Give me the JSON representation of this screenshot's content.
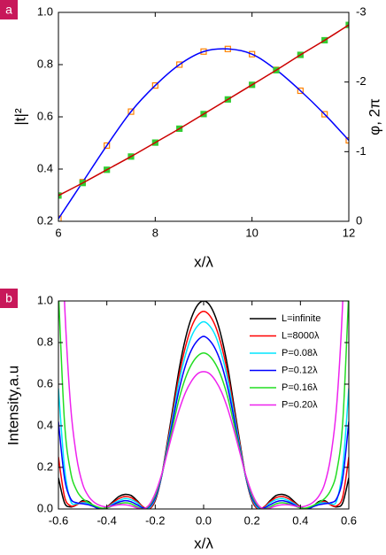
{
  "chart_data": [
    {
      "type": "line",
      "panel_label": "a",
      "xlabel": "x/λ",
      "ylabel": "|t|²",
      "y2label": "φ, 2π",
      "x": [
        6,
        6.5,
        7,
        7.5,
        8,
        8.5,
        9,
        9.5,
        10,
        10.5,
        11,
        11.5,
        12
      ],
      "xlim": [
        6,
        12
      ],
      "xticks": [
        6,
        8,
        10,
        12
      ],
      "ylim": [
        0.2,
        1
      ],
      "yticks": [
        0.2,
        0.4,
        0.6,
        0.8,
        {
          "value": 1,
          "label": "1.0"
        }
      ],
      "y2lim": [
        0,
        -3
      ],
      "y2ticks": [
        0,
        -1,
        -2,
        -3
      ],
      "series": [
        {
          "color": "#ff8000",
          "style": "markers",
          "values": [
            0.21,
            0.35,
            0.49,
            0.62,
            0.72,
            0.8,
            0.85,
            0.86,
            0.84,
            0.78,
            0.7,
            0.61,
            0.51
          ]
        },
        {
          "color": "#0000ff",
          "style": "line",
          "values": [
            0.21,
            0.35,
            0.49,
            0.62,
            0.72,
            0.8,
            0.85,
            0.86,
            0.84,
            0.78,
            0.7,
            0.61,
            0.51
          ]
        },
        {
          "color": "#33cc33",
          "style": "markers",
          "axis": "y2",
          "values": [
            -0.37,
            -0.55,
            -0.74,
            -0.93,
            -1.13,
            -1.33,
            -1.54,
            -1.75,
            -1.96,
            -2.17,
            -2.39,
            -2.6,
            -2.82
          ]
        },
        {
          "color": "#cc0000",
          "style": "line",
          "axis": "y2",
          "values": [
            -0.37,
            -0.55,
            -0.74,
            -0.93,
            -1.13,
            -1.33,
            -1.54,
            -1.75,
            -1.96,
            -2.17,
            -2.39,
            -2.6,
            -2.82
          ]
        }
      ]
    },
    {
      "type": "line",
      "panel_label": "b",
      "xlabel": "x/λ",
      "ylabel": "Intensity,a.u",
      "legend": "upper right",
      "x": [
        -0.6,
        -0.575,
        -0.55,
        -0.525,
        -0.5,
        -0.475,
        -0.45,
        -0.425,
        -0.4,
        -0.375,
        -0.35,
        -0.325,
        -0.3,
        -0.275,
        -0.25,
        -0.225,
        -0.2,
        -0.175,
        -0.15,
        -0.125,
        -0.1,
        -0.075,
        -0.05,
        -0.025,
        0,
        0.025,
        0.05,
        0.075,
        0.1,
        0.125,
        0.15,
        0.175,
        0.2,
        0.225,
        0.25,
        0.275,
        0.3,
        0.325,
        0.35,
        0.375,
        0.4,
        0.425,
        0.45,
        0.475,
        0.5,
        0.525,
        0.55,
        0.575,
        0.6
      ],
      "xlim": [
        -0.6,
        0.6
      ],
      "xticks": [
        -0.6,
        -0.4,
        -0.2,
        {
          "value": 0,
          "label": "0.0"
        },
        0.2,
        0.4,
        0.6
      ],
      "ylim": [
        0,
        1
      ],
      "yticks": [
        {
          "value": 0,
          "label": "0.0"
        },
        0.2,
        0.4,
        0.6,
        0.8,
        {
          "value": 1,
          "label": "1.0"
        }
      ],
      "series": [
        {
          "name": "L=infinite",
          "color": "#000000",
          "values": [
            0.15,
            0.03,
            0.01,
            0.02,
            0.04,
            0.035,
            0.01,
            0,
            0.01,
            0.035,
            0.06,
            0.07,
            0.065,
            0.04,
            0.01,
            0,
            0.04,
            0.15,
            0.32,
            0.5,
            0.68,
            0.82,
            0.92,
            0.98,
            1,
            0.98,
            0.92,
            0.82,
            0.68,
            0.5,
            0.32,
            0.15,
            0.04,
            0,
            0.01,
            0.04,
            0.065,
            0.07,
            0.06,
            0.035,
            0.01,
            0,
            0.01,
            0.035,
            0.04,
            0.02,
            0.01,
            0.03,
            0.15
          ]
        },
        {
          "name": "L=8000λ",
          "color": "#ff0000",
          "values": [
            0.25,
            0.06,
            0.015,
            0.02,
            0.035,
            0.03,
            0.01,
            0,
            0.008,
            0.03,
            0.05,
            0.06,
            0.055,
            0.035,
            0.01,
            0,
            0.045,
            0.15,
            0.31,
            0.48,
            0.65,
            0.78,
            0.875,
            0.93,
            0.95,
            0.93,
            0.875,
            0.78,
            0.65,
            0.48,
            0.31,
            0.15,
            0.045,
            0,
            0.01,
            0.035,
            0.055,
            0.06,
            0.05,
            0.03,
            0.008,
            0,
            0.01,
            0.03,
            0.035,
            0.02,
            0.015,
            0.06,
            0.25
          ]
        },
        {
          "name": "P=0.08λ",
          "color": "#00e5ff",
          "values": [
            0.58,
            0.2,
            0.04,
            0.025,
            0.03,
            0.025,
            0.01,
            0,
            0.006,
            0.025,
            0.04,
            0.05,
            0.045,
            0.03,
            0.005,
            0.005,
            0.05,
            0.15,
            0.3,
            0.46,
            0.62,
            0.74,
            0.83,
            0.88,
            0.9,
            0.88,
            0.83,
            0.74,
            0.62,
            0.46,
            0.3,
            0.15,
            0.05,
            0.005,
            0.005,
            0.03,
            0.045,
            0.05,
            0.04,
            0.025,
            0.006,
            0,
            0.01,
            0.025,
            0.03,
            0.025,
            0.04,
            0.2,
            0.58
          ]
        },
        {
          "name": "P=0.12λ",
          "color": "#0000ff",
          "values": [
            0.42,
            0.15,
            0.05,
            0.03,
            0.025,
            0.02,
            0.01,
            0,
            0.005,
            0.02,
            0.033,
            0.04,
            0.035,
            0.02,
            0.005,
            0.01,
            0.055,
            0.15,
            0.29,
            0.44,
            0.58,
            0.69,
            0.765,
            0.81,
            0.83,
            0.81,
            0.765,
            0.69,
            0.58,
            0.44,
            0.29,
            0.15,
            0.055,
            0.01,
            0.005,
            0.02,
            0.035,
            0.04,
            0.033,
            0.02,
            0.005,
            0,
            0.01,
            0.02,
            0.025,
            0.03,
            0.05,
            0.15,
            0.42
          ]
        },
        {
          "name": "P=0.16λ",
          "color": "#22dd22",
          "values": [
            1.05,
            0.42,
            0.18,
            0.09,
            0.05,
            0.03,
            0.015,
            0.005,
            0.005,
            0.015,
            0.025,
            0.03,
            0.025,
            0.01,
            0,
            0.015,
            0.065,
            0.155,
            0.28,
            0.41,
            0.535,
            0.63,
            0.695,
            0.735,
            0.75,
            0.735,
            0.695,
            0.63,
            0.535,
            0.41,
            0.28,
            0.155,
            0.065,
            0.015,
            0,
            0.01,
            0.025,
            0.03,
            0.025,
            0.015,
            0.005,
            0.005,
            0.015,
            0.03,
            0.05,
            0.09,
            0.18,
            0.42,
            1.05
          ]
        },
        {
          "name": "P=0.20λ",
          "color": "#ee22ee",
          "values": [
            1.8,
            1,
            0.5,
            0.25,
            0.12,
            0.06,
            0.03,
            0.015,
            0.01,
            0.015,
            0.02,
            0.02,
            0.015,
            0.005,
            0,
            0.02,
            0.075,
            0.16,
            0.27,
            0.38,
            0.48,
            0.56,
            0.615,
            0.65,
            0.66,
            0.65,
            0.615,
            0.56,
            0.48,
            0.38,
            0.27,
            0.16,
            0.075,
            0.02,
            0,
            0.005,
            0.015,
            0.02,
            0.02,
            0.015,
            0.01,
            0.015,
            0.03,
            0.06,
            0.12,
            0.25,
            0.5,
            1,
            1.8
          ]
        }
      ]
    }
  ]
}
